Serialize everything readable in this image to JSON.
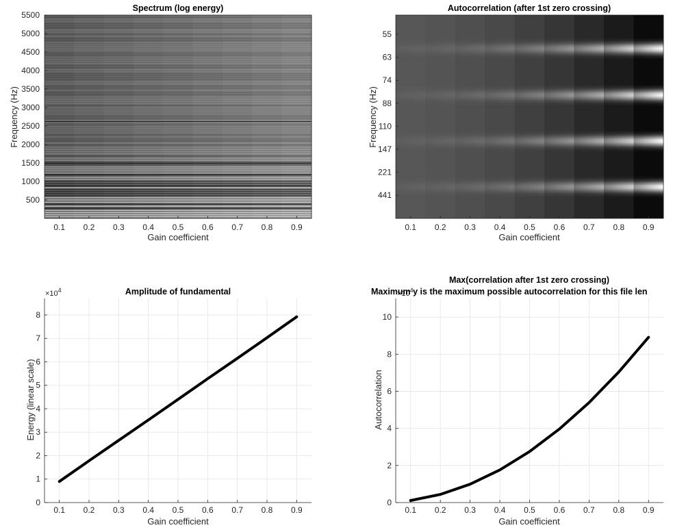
{
  "charts": {
    "spectrum": {
      "title": "Spectrum (log energy)",
      "xlabel": "Gain coefficient",
      "ylabel": "Frequency (Hz)"
    },
    "autocorr": {
      "title": "Autocorrelation (after 1st zero crossing)",
      "xlabel": "Gain coefficient",
      "ylabel": "Frequency (Hz)"
    },
    "amplitude": {
      "title": "Amplitude of fundamental",
      "xlabel": "Gain coefficient",
      "ylabel": "Energy (linear scale)",
      "exponent_base": "×10",
      "exponent_power": "4"
    },
    "maxcorr": {
      "title_line1": "Max(correlation after 1st zero crossing)",
      "title_line2": "Maximum y is the maximum possible autocorrelation for this file len",
      "xlabel": "Gain coefficient",
      "ylabel": "Autocorrelation",
      "exponent_base": "×10",
      "exponent_power": "4"
    }
  },
  "chart_data": [
    {
      "type": "heatmap",
      "title": "Spectrum (log energy)",
      "xlabel": "Gain coefficient",
      "ylabel": "Frequency (Hz)",
      "x": [
        0.1,
        0.2,
        0.3,
        0.4,
        0.5,
        0.6,
        0.7,
        0.8,
        0.9
      ],
      "xticks": [
        "0.1",
        "0.2",
        "0.3",
        "0.4",
        "0.5",
        "0.6",
        "0.7",
        "0.8",
        "0.9"
      ],
      "yticks": [
        "500",
        "1000",
        "1500",
        "2000",
        "2500",
        "3000",
        "3500",
        "4000",
        "4500",
        "5000",
        "5500"
      ],
      "ylim": [
        0,
        5500
      ],
      "colormap": "gray"
    },
    {
      "type": "heatmap",
      "title": "Autocorrelation (after 1st zero crossing)",
      "xlabel": "Gain coefficient",
      "ylabel": "Frequency (Hz)",
      "x": [
        0.1,
        0.2,
        0.3,
        0.4,
        0.5,
        0.6,
        0.7,
        0.8,
        0.9
      ],
      "xticks": [
        "0.1",
        "0.2",
        "0.3",
        "0.4",
        "0.5",
        "0.6",
        "0.7",
        "0.8",
        "0.9"
      ],
      "yticks": [
        "55",
        "63",
        "74",
        "88",
        "110",
        "147",
        "221",
        "441"
      ],
      "colormap": "gray"
    },
    {
      "type": "line",
      "title": "Amplitude of fundamental",
      "xlabel": "Gain coefficient",
      "ylabel": "Energy (linear scale)",
      "x": [
        0.1,
        0.2,
        0.3,
        0.4,
        0.5,
        0.6,
        0.7,
        0.8,
        0.9
      ],
      "y": [
        9000,
        17800,
        26500,
        35200,
        44000,
        52800,
        61500,
        70300,
        79200
      ],
      "xlim": [
        0.05,
        0.95
      ],
      "ylim": [
        0,
        87000
      ],
      "xticks": [
        0.1,
        0.2,
        0.3,
        0.4,
        0.5,
        0.6,
        0.7,
        0.8,
        0.9
      ],
      "yticks": [
        0,
        10000,
        20000,
        30000,
        40000,
        50000,
        60000,
        70000,
        80000
      ],
      "ytick_labels": [
        "0",
        "1",
        "2",
        "3",
        "4",
        "5",
        "6",
        "7",
        "8"
      ],
      "grid": true,
      "color": "#000000"
    },
    {
      "type": "line",
      "title": "Max(correlation after 1st zero crossing)",
      "subtitle": "Maximum y is the maximum possible autocorrelation for this file len",
      "xlabel": "Gain coefficient",
      "ylabel": "Autocorrelation",
      "x": [
        0.1,
        0.2,
        0.3,
        0.4,
        0.5,
        0.6,
        0.7,
        0.8,
        0.9
      ],
      "y": [
        1100,
        4400,
        9900,
        17600,
        27500,
        39600,
        53900,
        70400,
        89100
      ],
      "xlim": [
        0.05,
        0.95
      ],
      "ylim": [
        0,
        110000
      ],
      "xticks": [
        0.1,
        0.2,
        0.3,
        0.4,
        0.5,
        0.6,
        0.7,
        0.8,
        0.9
      ],
      "yticks": [
        0,
        20000,
        40000,
        60000,
        80000,
        100000
      ],
      "ytick_labels": [
        "0",
        "2",
        "4",
        "6",
        "8",
        "10"
      ],
      "grid": true,
      "color": "#000000"
    }
  ]
}
